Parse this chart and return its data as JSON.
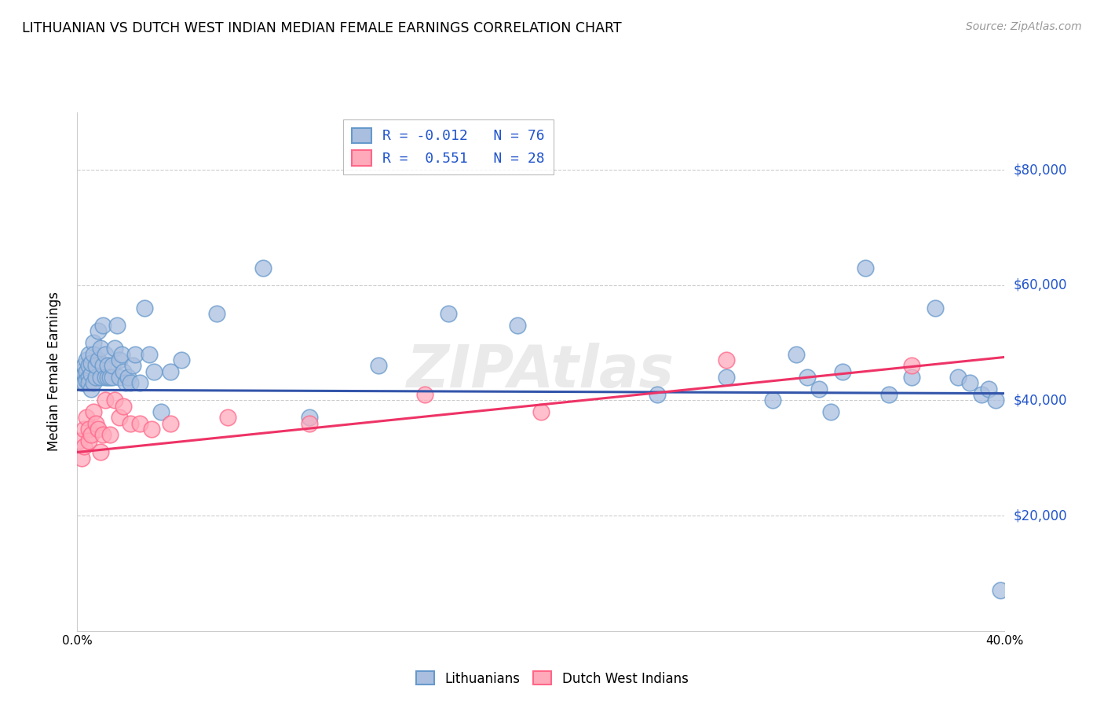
{
  "title": "LITHUANIAN VS DUTCH WEST INDIAN MEDIAN FEMALE EARNINGS CORRELATION CHART",
  "source": "Source: ZipAtlas.com",
  "ylabel": "Median Female Earnings",
  "watermark": "ZIPAtlas",
  "x_min": 0.0,
  "x_max": 0.4,
  "y_min": 0,
  "y_max": 90000,
  "y_ticks": [
    20000,
    40000,
    60000,
    80000
  ],
  "y_tick_labels": [
    "$20,000",
    "$40,000",
    "$60,000",
    "$80,000"
  ],
  "x_ticks": [
    0.0,
    0.05,
    0.1,
    0.15,
    0.2,
    0.25,
    0.3,
    0.35,
    0.4
  ],
  "x_tick_labels": [
    "0.0%",
    "",
    "",
    "",
    "",
    "",
    "",
    "",
    "40.0%"
  ],
  "blue_color": "#6699cc",
  "blue_fill": "#aabfdf",
  "pink_color": "#ff6688",
  "pink_fill": "#ffaabb",
  "trend_blue": "#3355aa",
  "trend_pink": "#ee3366",
  "blue_scatter_x": [
    0.001,
    0.002,
    0.002,
    0.003,
    0.003,
    0.003,
    0.004,
    0.004,
    0.004,
    0.005,
    0.005,
    0.005,
    0.005,
    0.006,
    0.006,
    0.006,
    0.007,
    0.007,
    0.007,
    0.008,
    0.008,
    0.009,
    0.009,
    0.01,
    0.01,
    0.011,
    0.011,
    0.012,
    0.012,
    0.013,
    0.013,
    0.014,
    0.015,
    0.015,
    0.016,
    0.017,
    0.018,
    0.018,
    0.019,
    0.02,
    0.021,
    0.022,
    0.023,
    0.024,
    0.025,
    0.027,
    0.029,
    0.031,
    0.033,
    0.036,
    0.04,
    0.045,
    0.06,
    0.08,
    0.1,
    0.13,
    0.16,
    0.19,
    0.25,
    0.28,
    0.3,
    0.31,
    0.315,
    0.32,
    0.325,
    0.33,
    0.34,
    0.35,
    0.36,
    0.37,
    0.38,
    0.385,
    0.39,
    0.393,
    0.396,
    0.398
  ],
  "blue_scatter_y": [
    44000,
    45000,
    43000,
    44500,
    43000,
    46000,
    45000,
    43500,
    47000,
    44000,
    46000,
    43000,
    48000,
    44500,
    46500,
    42000,
    50000,
    43000,
    48000,
    44000,
    46000,
    52000,
    47000,
    44000,
    49000,
    53000,
    46000,
    44000,
    48000,
    44000,
    46000,
    44000,
    44000,
    46000,
    49000,
    53000,
    47000,
    44000,
    48000,
    45000,
    43000,
    44000,
    43000,
    46000,
    48000,
    43000,
    56000,
    48000,
    45000,
    38000,
    45000,
    47000,
    55000,
    63000,
    37000,
    46000,
    55000,
    53000,
    41000,
    44000,
    40000,
    48000,
    44000,
    42000,
    38000,
    45000,
    63000,
    41000,
    44000,
    56000,
    44000,
    43000,
    41000,
    42000,
    40000,
    7000
  ],
  "pink_scatter_x": [
    0.001,
    0.002,
    0.003,
    0.003,
    0.004,
    0.005,
    0.005,
    0.006,
    0.007,
    0.008,
    0.009,
    0.01,
    0.011,
    0.012,
    0.014,
    0.016,
    0.018,
    0.02,
    0.023,
    0.027,
    0.032,
    0.04,
    0.065,
    0.1,
    0.15,
    0.2,
    0.28,
    0.36
  ],
  "pink_scatter_y": [
    33000,
    30000,
    35000,
    32000,
    37000,
    35000,
    33000,
    34000,
    38000,
    36000,
    35000,
    31000,
    34000,
    40000,
    34000,
    40000,
    37000,
    39000,
    36000,
    36000,
    35000,
    36000,
    37000,
    36000,
    41000,
    38000,
    47000,
    46000
  ],
  "blue_trend_x": [
    0.0,
    0.4
  ],
  "blue_trend_y": [
    41800,
    41200
  ],
  "pink_trend_x": [
    0.0,
    0.4
  ],
  "pink_trend_y": [
    31000,
    47500
  ],
  "bg_color": "#ffffff",
  "grid_color": "#cccccc",
  "right_label_color": "#2255cc"
}
